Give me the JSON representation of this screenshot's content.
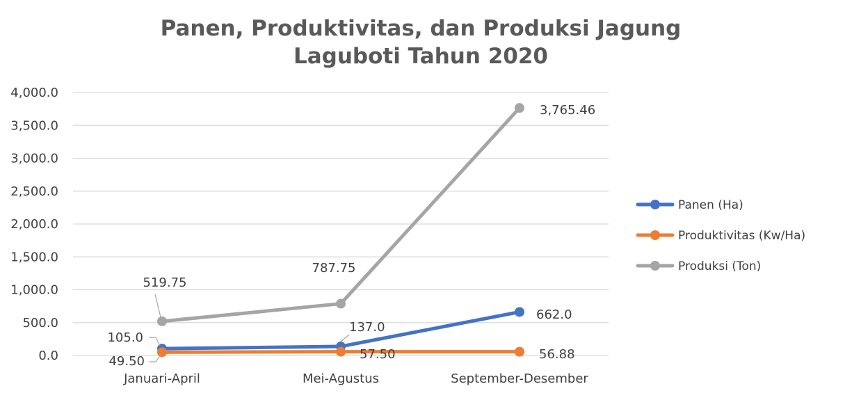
{
  "chart_data": {
    "type": "line",
    "title": [
      "Panen, Produktivitas, dan Produksi Jagung",
      "Laguboti Tahun 2020"
    ],
    "xlabel": "",
    "ylabel": "",
    "categories": [
      "Januari-April",
      "Mei-Agustus",
      "September-Desember"
    ],
    "ylim": [
      0,
      4000
    ],
    "yticks": [
      0,
      500,
      1000,
      1500,
      2000,
      2500,
      3000,
      3500,
      4000
    ],
    "ytick_labels": [
      "0.0",
      "500.0",
      "1,000.0",
      "1,500.0",
      "2,000.0",
      "2,500.0",
      "3,000.0",
      "3,500.0",
      "4,000.0"
    ],
    "grid": true,
    "legend_position": "right",
    "series": [
      {
        "name": "Panen (Ha)",
        "color": "#4472C4",
        "values": [
          105.0,
          137.0,
          662.0
        ],
        "labels": [
          "105.0",
          "137.0",
          "662.0"
        ]
      },
      {
        "name": "Produktivitas (Kw/Ha)",
        "color": "#ED7D31",
        "values": [
          49.5,
          57.5,
          56.88
        ],
        "labels": [
          "49.50",
          "57.50",
          "56.88"
        ]
      },
      {
        "name": "Produksi (Ton)",
        "color": "#A5A5A5",
        "values": [
          519.75,
          787.75,
          3765.46
        ],
        "labels": [
          "519.75",
          "787.75",
          "3,765.46"
        ]
      }
    ]
  }
}
